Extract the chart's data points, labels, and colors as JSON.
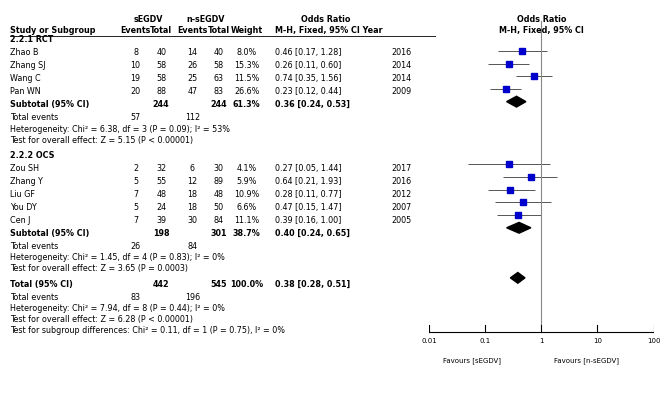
{
  "title_cols": {
    "segdv": "sEGDV",
    "nsegdv": "n-sEGDV",
    "or": "Odds Ratio",
    "or2": "Odds Ratio"
  },
  "header_row": {
    "study": "Study or Subgroup",
    "seg_events": "Events",
    "seg_total": "Total",
    "nseg_events": "Events",
    "nseg_total": "Total",
    "weight": "Weight",
    "or_ci": "M-H, Fixed, 95% CI Year",
    "or_ci2": "M-H, Fixed, 95% CI"
  },
  "section1_label": "2.2.1 RCT",
  "section1_studies": [
    {
      "study": "Zhao B",
      "se": 8,
      "st": 40,
      "ne": 14,
      "nt": 40,
      "w": "8.0%",
      "or": "0.46 [0.17, 1.28]",
      "year": "2016",
      "or_val": 0.46,
      "ci_lo": 0.17,
      "ci_hi": 1.28
    },
    {
      "study": "Zhang SJ",
      "se": 10,
      "st": 58,
      "ne": 26,
      "nt": 58,
      "w": "15.3%",
      "or": "0.26 [0.11, 0.60]",
      "year": "2014",
      "or_val": 0.26,
      "ci_lo": 0.11,
      "ci_hi": 0.6
    },
    {
      "study": "Wang C",
      "se": 19,
      "st": 58,
      "ne": 25,
      "nt": 63,
      "w": "11.5%",
      "or": "0.74 [0.35, 1.56]",
      "year": "2014",
      "or_val": 0.74,
      "ci_lo": 0.35,
      "ci_hi": 1.56
    },
    {
      "study": "Pan WN",
      "se": 20,
      "st": 88,
      "ne": 47,
      "nt": 83,
      "w": "26.6%",
      "or": "0.23 [0.12, 0.44]",
      "year": "2009",
      "or_val": 0.23,
      "ci_lo": 0.12,
      "ci_hi": 0.44
    }
  ],
  "section1_subtotal": {
    "st": "244",
    "nt": "244",
    "w": "61.3%",
    "or": "0.36 [0.24, 0.53]",
    "or_val": 0.36,
    "ci_lo": 0.24,
    "ci_hi": 0.53
  },
  "section1_total_events": {
    "se": "57",
    "ne": "112"
  },
  "section1_hetero": "Heterogeneity: Chi² = 6.38, df = 3 (P = 0.09); I² = 53%",
  "section1_test": "Test for overall effect: Z = 5.15 (P < 0.00001)",
  "section2_label": "2.2.2 OCS",
  "section2_studies": [
    {
      "study": "Zou SH",
      "se": 2,
      "st": 32,
      "ne": 6,
      "nt": 30,
      "w": "4.1%",
      "or": "0.27 [0.05, 1.44]",
      "year": "2017",
      "or_val": 0.27,
      "ci_lo": 0.05,
      "ci_hi": 1.44
    },
    {
      "study": "Zhang Y",
      "se": 5,
      "st": 55,
      "ne": 12,
      "nt": 89,
      "w": "5.9%",
      "or": "0.64 [0.21, 1.93]",
      "year": "2016",
      "or_val": 0.64,
      "ci_lo": 0.21,
      "ci_hi": 1.93
    },
    {
      "study": "Liu GF",
      "se": 7,
      "st": 48,
      "ne": 18,
      "nt": 48,
      "w": "10.9%",
      "or": "0.28 [0.11, 0.77]",
      "year": "2012",
      "or_val": 0.28,
      "ci_lo": 0.11,
      "ci_hi": 0.77
    },
    {
      "study": "You DY",
      "se": 5,
      "st": 24,
      "ne": 18,
      "nt": 50,
      "w": "6.6%",
      "or": "0.47 [0.15, 1.47]",
      "year": "2007",
      "or_val": 0.47,
      "ci_lo": 0.15,
      "ci_hi": 1.47
    },
    {
      "study": "Cen J",
      "se": 7,
      "st": 39,
      "ne": 30,
      "nt": 84,
      "w": "11.1%",
      "or": "0.39 [0.16, 1.00]",
      "year": "2005",
      "or_val": 0.39,
      "ci_lo": 0.16,
      "ci_hi": 1.0
    }
  ],
  "section2_subtotal": {
    "st": "198",
    "nt": "301",
    "w": "38.7%",
    "or": "0.40 [0.24, 0.65]",
    "or_val": 0.4,
    "ci_lo": 0.24,
    "ci_hi": 0.65
  },
  "section2_total_events": {
    "se": "26",
    "ne": "84"
  },
  "section2_hetero": "Heterogeneity: Chi² = 1.45, df = 4 (P = 0.83); I² = 0%",
  "section2_test": "Test for overall effect: Z = 3.65 (P = 0.0003)",
  "total": {
    "st": "442",
    "nt": "545",
    "w": "100.0%",
    "or": "0.38 [0.28, 0.51]",
    "or_val": 0.38,
    "ci_lo": 0.28,
    "ci_hi": 0.51
  },
  "total_events": {
    "se": "83",
    "ne": "196"
  },
  "total_hetero": "Heterogeneity: Chi² = 7.94, df = 8 (P = 0.44); I² = 0%",
  "total_test": "Test for overall effect: Z = 6.28 (P < 0.00001)",
  "total_subgroup": "Test for subgroup differences: Chi² = 0.11, df = 1 (P = 0.75), I² = 0%",
  "x_axis_ticks": [
    0.01,
    0.1,
    1,
    10,
    100
  ],
  "x_axis_labels": [
    "0.01",
    "0.1",
    "1",
    "10",
    "100"
  ],
  "x_label_left": "Favours [sEGDV]",
  "x_label_right": "Favours [n-sEGDV]",
  "study_color": "#0000cc",
  "diamond_color": "#000000",
  "line_color": "#555555",
  "text_color": "#000000",
  "bg_color": "#ffffff"
}
